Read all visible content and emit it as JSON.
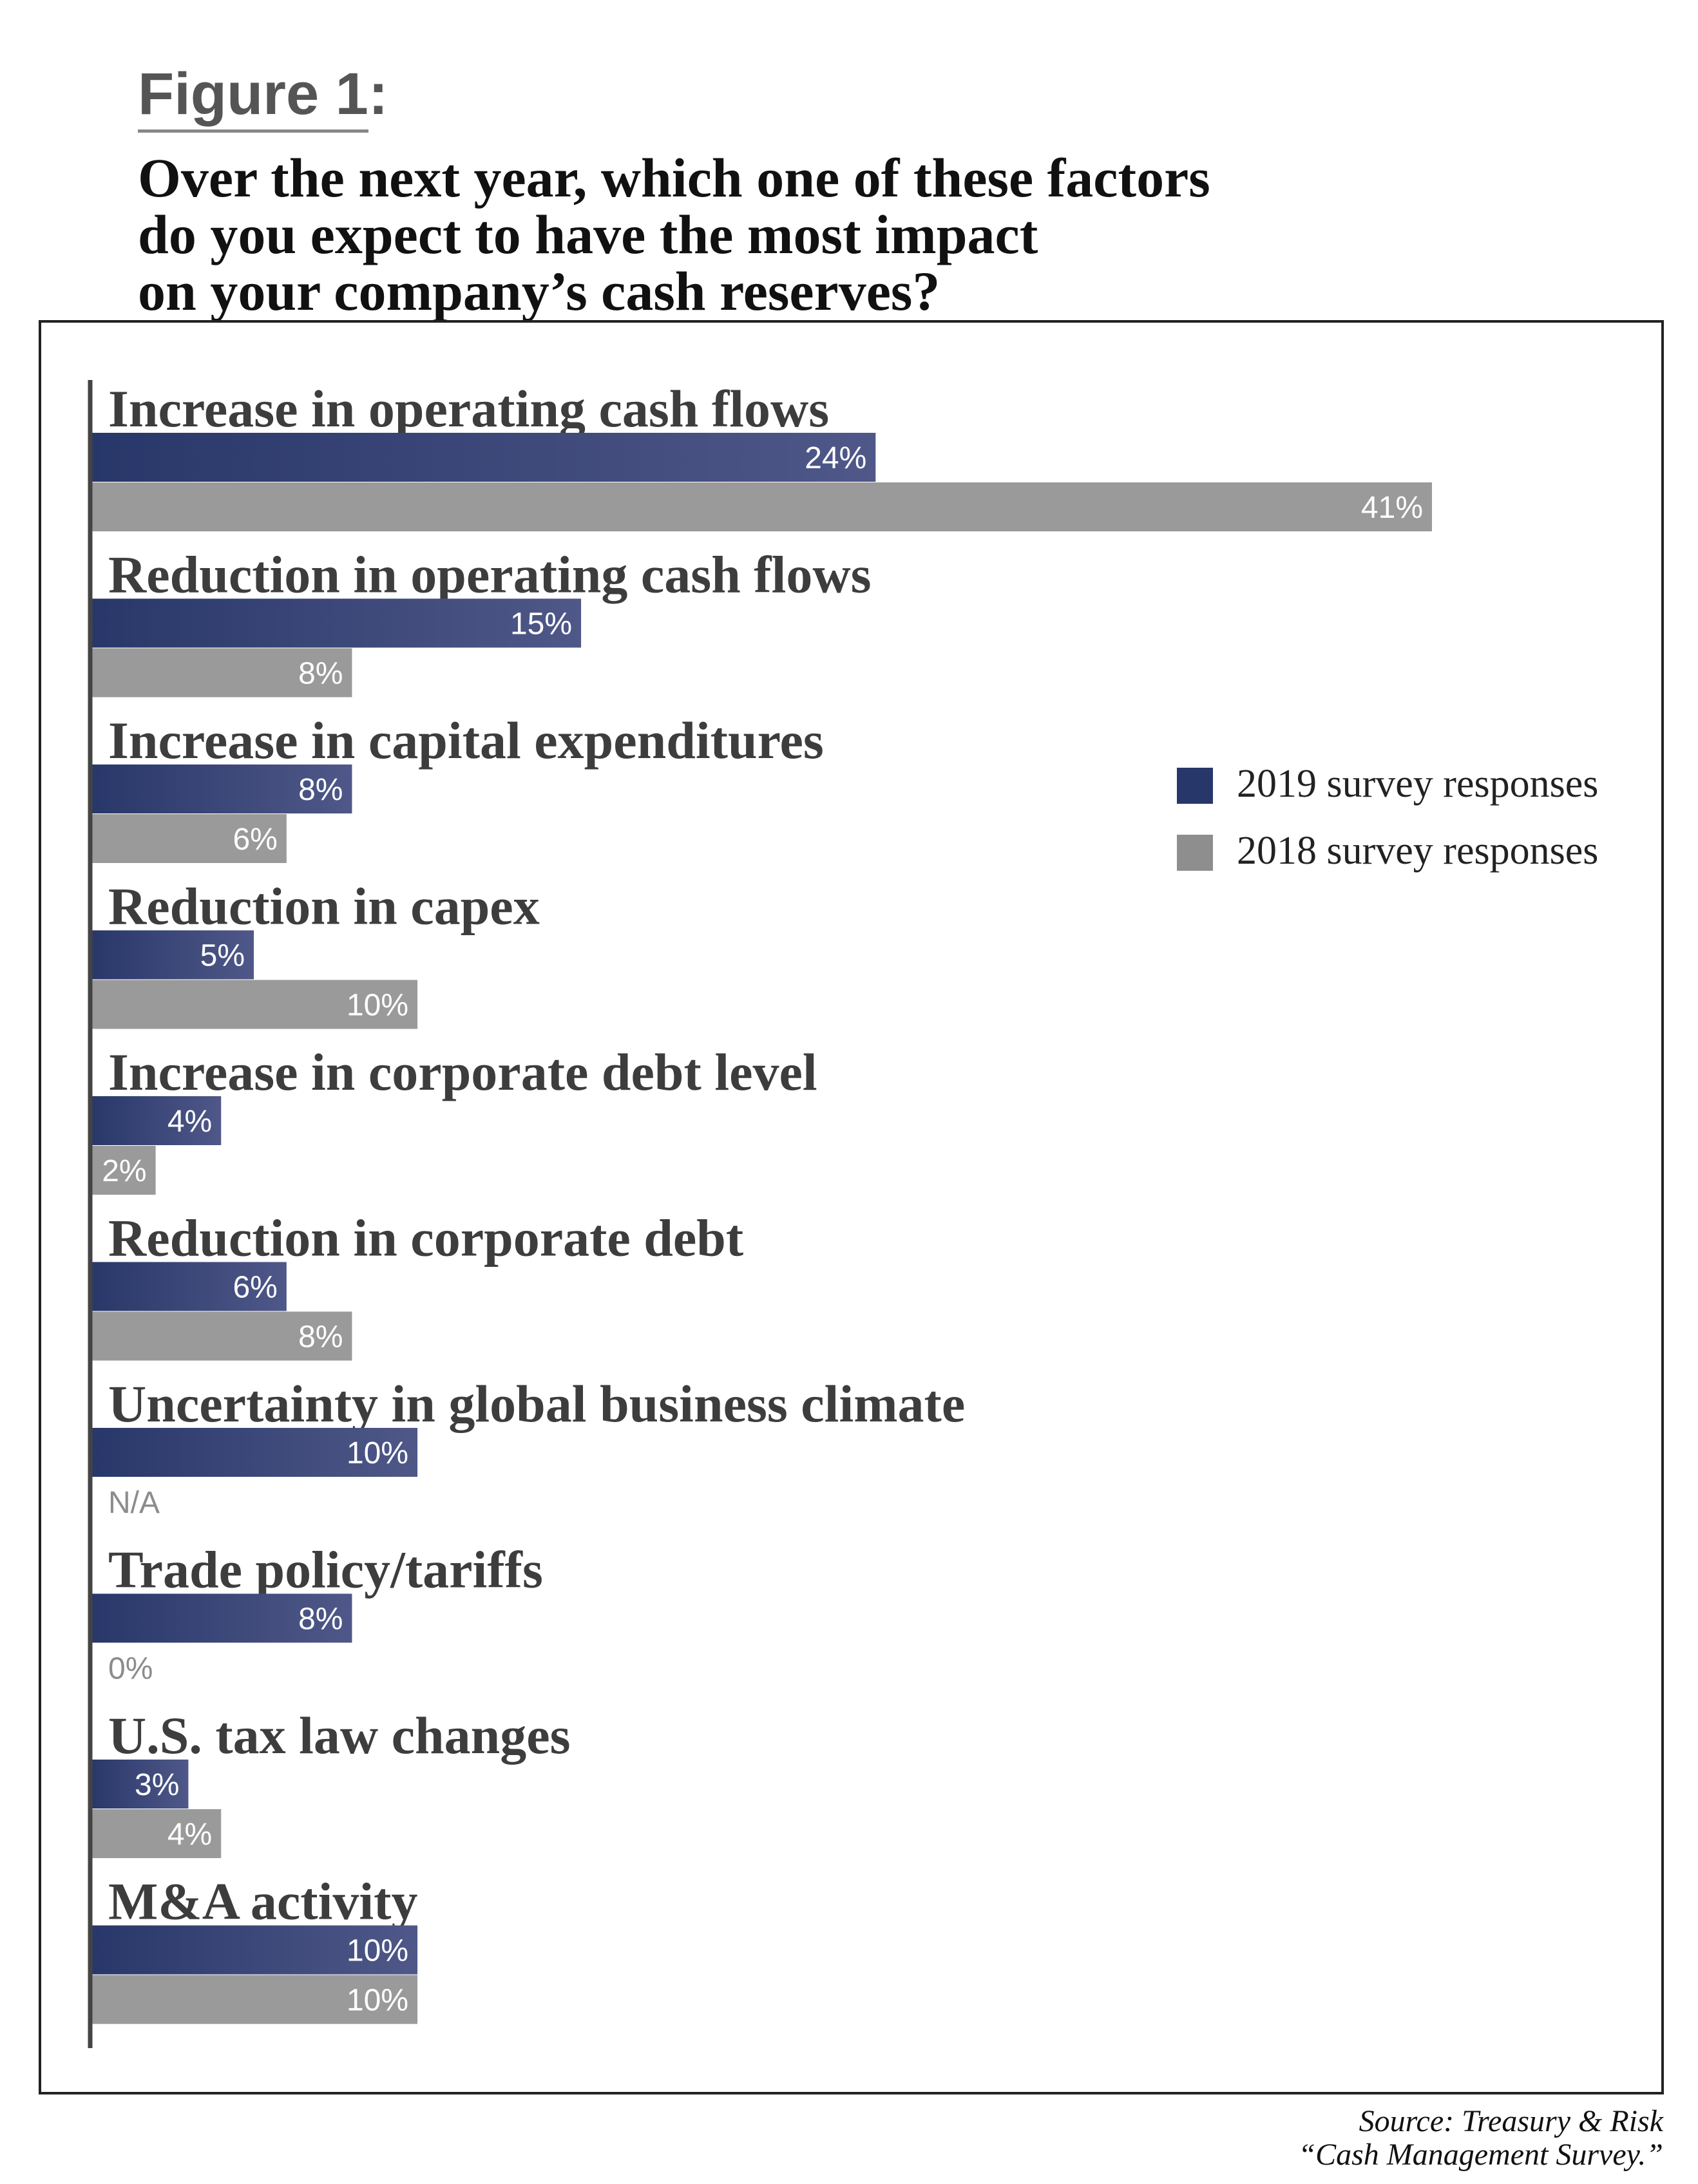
{
  "figure_label": "Figure 1",
  "figure_colon": ":",
  "title_lines": [
    "Over the next year, which one of these factors",
    "do you expect to have the most impact",
    "on your company’s cash reserves?"
  ],
  "source_lines": [
    "Source: Treasury & Risk",
    "“Cash Management Survey.”"
  ],
  "colors": {
    "series_2019_start": "#283769",
    "series_2019_end": "#4f5888",
    "series_2018": "#9a9a9a",
    "axis": "#444444",
    "value_text": "#ffffff",
    "na_text": "#8c8c8c"
  },
  "chart_data": {
    "type": "bar",
    "orientation": "horizontal",
    "categories": [
      "Increase in operating cash flows",
      "Reduction in operating cash flows",
      "Increase in capital expenditures",
      "Reduction in capex",
      "Increase in corporate debt level",
      "Reduction in corporate debt",
      "Uncertainty in global business climate",
      "Trade policy/tariffs",
      "U.S. tax law changes",
      "M&A activity"
    ],
    "series": [
      {
        "name": "2019 survey responses",
        "values": [
          24,
          15,
          8,
          5,
          4,
          6,
          10,
          8,
          3,
          10
        ],
        "labels": [
          "24%",
          "15%",
          "8%",
          "5%",
          "4%",
          "6%",
          "10%",
          "8%",
          "3%",
          "10%"
        ]
      },
      {
        "name": "2018 survey responses",
        "values": [
          41,
          8,
          6,
          10,
          2,
          8,
          null,
          0,
          4,
          10
        ],
        "labels": [
          "41%",
          "8%",
          "6%",
          "10%",
          "2%",
          "8%",
          "N/A",
          "0%",
          "4%",
          "10%"
        ]
      }
    ],
    "unit": "%",
    "xlim": [
      0,
      41
    ],
    "legend_position": "right",
    "grid": false
  }
}
